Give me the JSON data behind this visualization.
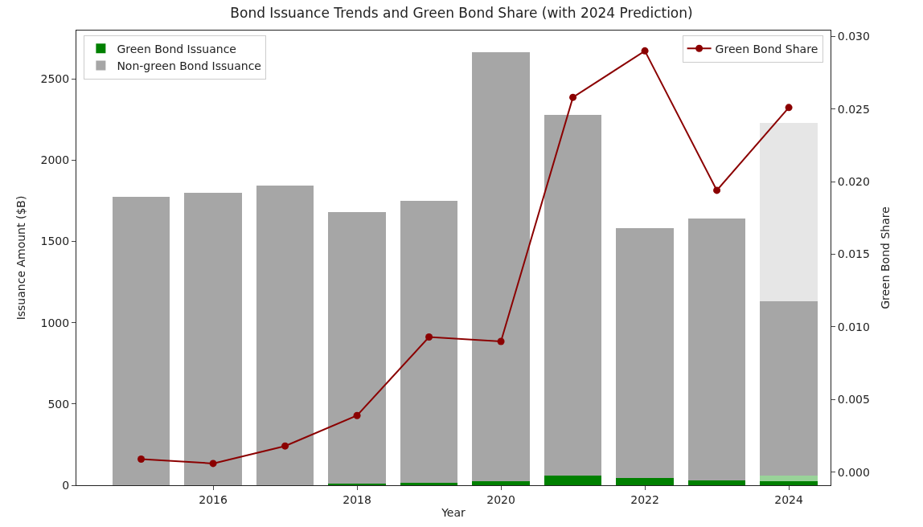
{
  "chart_data": {
    "type": "bar",
    "stacked": true,
    "title": "Bond Issuance Trends and Green Bond Share (with 2024 Prediction)",
    "xlabel": "Year",
    "ylabel": "Issuance Amount ($B)",
    "y2label": "Green Bond Share",
    "x": [
      2015,
      2016,
      2017,
      2018,
      2019,
      2020,
      2021,
      2022,
      2023,
      2024
    ],
    "series": [
      {
        "name": "Green Bond Issuance",
        "color": "#008000",
        "values": [
          null,
          null,
          null,
          10,
          16,
          24,
          59,
          46,
          32,
          25
        ]
      },
      {
        "color": "#99d399",
        "values": [
          null,
          null,
          null,
          null,
          null,
          null,
          null,
          null,
          null,
          32
        ]
      },
      {
        "name": "Non-green Bond Issuance",
        "color": "#a6a6a6",
        "values": [
          1775,
          1800,
          1845,
          1670,
          1734,
          2641,
          2221,
          1534,
          1608,
          1073
        ]
      },
      {
        "color": "#e6e6e6",
        "values": [
          null,
          null,
          null,
          null,
          null,
          null,
          null,
          null,
          null,
          1100
        ]
      },
      {
        "name": "Green Bond Share",
        "type": "line",
        "axis": "y2",
        "color": "#8b0000",
        "marker": "circle",
        "values": [
          0.0009,
          0.0006,
          0.0018,
          0.0039,
          0.0093,
          0.009,
          0.0258,
          0.029,
          0.0194,
          0.0251
        ]
      }
    ],
    "xlim": [
      2014.1,
      2024.58
    ],
    "xticks": [
      2016,
      2018,
      2020,
      2022,
      2024
    ],
    "ylim": [
      0,
      2798
    ],
    "yticks": [
      0,
      500,
      1000,
      1500,
      2000,
      2500
    ],
    "y2lim": [
      -0.0009,
      0.0304
    ],
    "y2ticks": [
      {
        "value": 0,
        "label": "0.000"
      },
      {
        "value": 0.005,
        "label": "0.005"
      },
      {
        "value": 0.01,
        "label": "0.010"
      },
      {
        "value": 0.015,
        "label": "0.015"
      },
      {
        "value": 0.02,
        "label": "0.020"
      },
      {
        "value": 0.025,
        "label": "0.025"
      },
      {
        "value": 0.03,
        "label": "0.030"
      }
    ],
    "legend": "top left"
  }
}
